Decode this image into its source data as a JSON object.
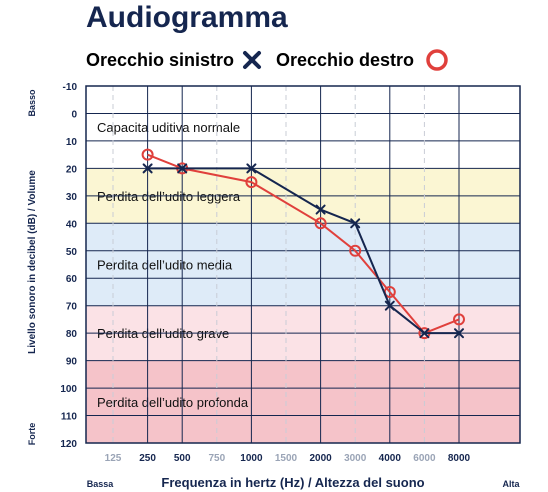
{
  "chart_data": {
    "type": "line",
    "title": "Audiogramma",
    "xlabel": "Frequenza in hertz (Hz) / Altezza del suono",
    "ylabel": "Livello sonoro in decibel (dB) / Volume",
    "x_side_labels": {
      "low": "Bassa",
      "high": "Alta"
    },
    "y_side_labels": {
      "top": "Basso",
      "bottom": "Forte"
    },
    "x_ticks": [
      {
        "label": "125",
        "minor": true
      },
      {
        "label": "250",
        "minor": false
      },
      {
        "label": "500",
        "minor": false
      },
      {
        "label": "750",
        "minor": true
      },
      {
        "label": "1000",
        "minor": false
      },
      {
        "label": "1500",
        "minor": true
      },
      {
        "label": "2000",
        "minor": false
      },
      {
        "label": "3000",
        "minor": true
      },
      {
        "label": "4000",
        "minor": false
      },
      {
        "label": "6000",
        "minor": true
      },
      {
        "label": "8000",
        "minor": false
      }
    ],
    "y_ticks": [
      -10,
      0,
      10,
      20,
      30,
      40,
      50,
      60,
      70,
      80,
      90,
      100,
      110,
      120
    ],
    "ylim": [
      -10,
      120
    ],
    "y_inverted": true,
    "bands": [
      {
        "label": "Capacita uditiva normale",
        "from": -10,
        "to": 20,
        "color": "#ffffff"
      },
      {
        "label": "Perdita dell’udito leggera",
        "from": 20,
        "to": 40,
        "color": "#fbf6d3"
      },
      {
        "label": "Perdita dell’udito media",
        "from": 40,
        "to": 70,
        "color": "#deebf8"
      },
      {
        "label": "Perdita dell’udito grave",
        "from": 70,
        "to": 90,
        "color": "#fbe2e6"
      },
      {
        "label": "Perdita dell’udito profonda",
        "from": 90,
        "to": 120,
        "color": "#f5c3c9"
      }
    ],
    "series": [
      {
        "name": "Orecchio sinistro",
        "marker": "x",
        "color": "#15264f",
        "points": [
          {
            "x": "250",
            "y": 20
          },
          {
            "x": "500",
            "y": 20
          },
          {
            "x": "1000",
            "y": 20
          },
          {
            "x": "2000",
            "y": 35
          },
          {
            "x": "3000",
            "y": 40
          },
          {
            "x": "4000",
            "y": 70
          },
          {
            "x": "6000",
            "y": 80
          },
          {
            "x": "8000",
            "y": 80
          }
        ]
      },
      {
        "name": "Orecchio destro",
        "marker": "o",
        "color": "#e0403c",
        "points": [
          {
            "x": "250",
            "y": 15
          },
          {
            "x": "500",
            "y": 20
          },
          {
            "x": "1000",
            "y": 25
          },
          {
            "x": "2000",
            "y": 40
          },
          {
            "x": "3000",
            "y": 50
          },
          {
            "x": "4000",
            "y": 65
          },
          {
            "x": "6000",
            "y": 80
          },
          {
            "x": "8000",
            "y": 75
          }
        ]
      }
    ],
    "grid": true
  }
}
